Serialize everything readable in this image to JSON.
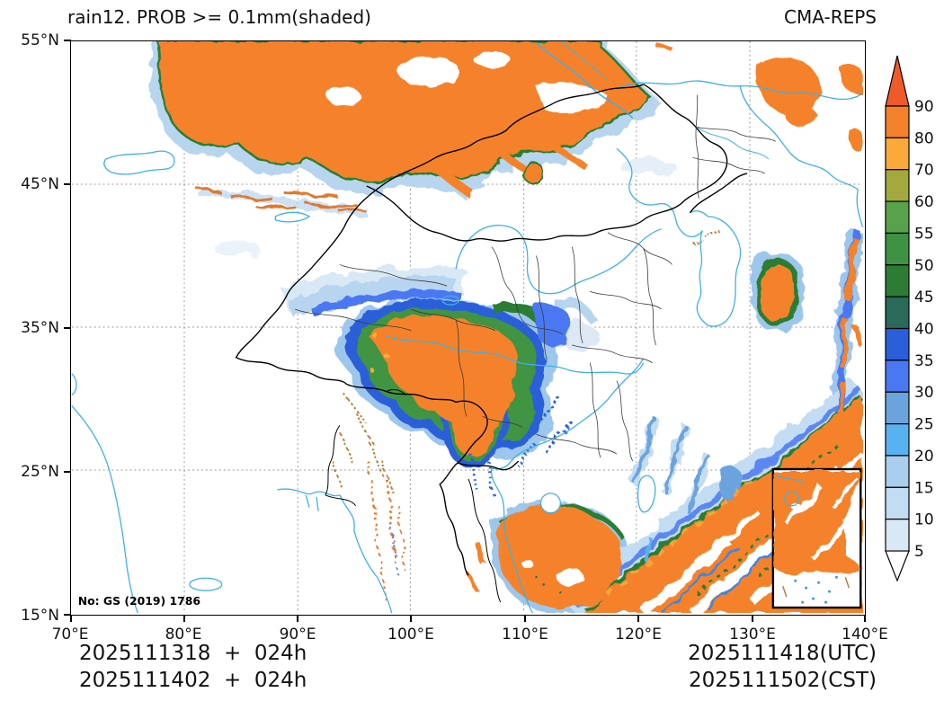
{
  "header": {
    "title": "rain12. PROB >= 0.1mm(shaded)",
    "model": "CMA-REPS"
  },
  "axes": {
    "x_ticks": [
      "70°E",
      "80°E",
      "90°E",
      "100°E",
      "110°E",
      "120°E",
      "130°E",
      "140°E"
    ],
    "y_ticks": [
      "55°N",
      "45°N",
      "35°N",
      "25°N",
      "15°N"
    ]
  },
  "colorbar": {
    "labels_top_to_bottom": [
      "90",
      "80",
      "70",
      "60",
      "55",
      "50",
      "45",
      "40",
      "35",
      "30",
      "25",
      "20",
      "15",
      "10",
      "5"
    ],
    "segment_colors_top_to_bottom": [
      "#f5822b",
      "#fbaa3a",
      "#a2a93e",
      "#57a24a",
      "#3d9343",
      "#2c7d33",
      "#296a59",
      "#2a5fd9",
      "#4a78f2",
      "#6ba3dd",
      "#59b2f0",
      "#a9cfec",
      "#c2dcf2",
      "#d8e9f5"
    ],
    "over_arrow_color": "#ee5a2a",
    "under_arrow_color": "#ffffff"
  },
  "map": {
    "license_note": "No: GS (2019) 1786"
  },
  "footer": {
    "init_line_utc": "2025111318  +  024h",
    "init_line_cst": "2025111402  +  024h",
    "valid_line_utc": "2025111418(UTC)",
    "valid_line_cst": "2025111502(CST)"
  },
  "colors": {
    "shade_orange": "#f5822b",
    "shade_green": "#2c7d33",
    "shade_blue": "#4a78f2",
    "shade_fringe": "#9cc6ec",
    "river_cyan": "#3fb0e4",
    "border_black": "#000000",
    "province_gray": "#3a3a3a",
    "grid_gray": "#999999"
  }
}
